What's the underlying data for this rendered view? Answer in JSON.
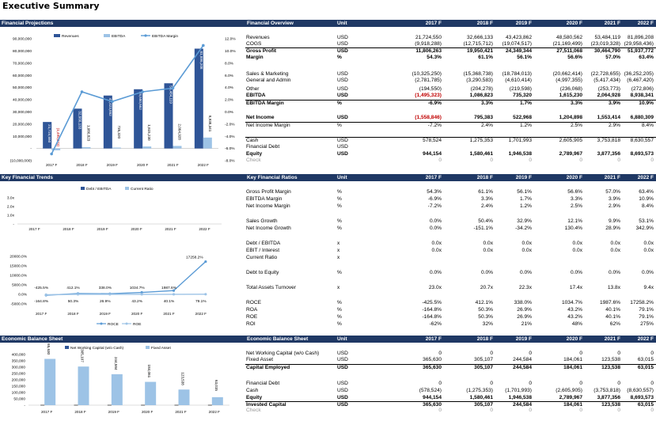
{
  "title": "Executive Summary",
  "colors": {
    "header_bg": "#1f3864",
    "bar_dark": "#2f5597",
    "bar_light": "#9dc3e6",
    "line": "#5b9bd5",
    "negative": "#c00000"
  },
  "years": [
    "2017 F",
    "2018 F",
    "2019 F",
    "2020 F",
    "2021 F",
    "2022 F"
  ],
  "sections": {
    "fin_proj": "Financial Projections",
    "fin_overview": "Financial Overview",
    "key_trends": "Key Financial Trends",
    "key_ratios": "Key Financial Ratios",
    "eco_bs_chart": "Economic Balance Sheet",
    "eco_bs_table": "Economic Balance Sheet",
    "unit_header": "Unit"
  },
  "overview_rows": [
    {
      "label": "Revenues",
      "unit": "USD",
      "values": [
        "21,724,550",
        "32,666,133",
        "43,423,862",
        "48,580,562",
        "53,484,119",
        "81,896,208"
      ]
    },
    {
      "label": "COGS",
      "unit": "USD",
      "values": [
        "(9,918,288)",
        "(12,715,712)",
        "(19,074,517)",
        "(21,169,499)",
        "(23,019,328)",
        "(29,958,436)"
      ]
    },
    {
      "label": "Gross Profit",
      "unit": "USD",
      "values": [
        "11,806,263",
        "19,950,421",
        "24,349,344",
        "27,511,068",
        "30,464,790",
        "51,937,772"
      ]
    },
    {
      "label": "Margin",
      "unit": "%",
      "values": [
        "54.3%",
        "61.1%",
        "56.1%",
        "56.6%",
        "57.0%",
        "63.4%"
      ]
    },
    {
      "label": "Sales & Marketing",
      "unit": "USD",
      "values": [
        "(10,325,250)",
        "(15,368,738)",
        "(18,784,013)",
        "(20,662,414)",
        "(22,728,655)",
        "(36,252,205)"
      ]
    },
    {
      "label": "General and Admin",
      "unit": "USD",
      "values": [
        "(2,781,785)",
        "(3,290,583)",
        "(4,610,414)",
        "(4,997,355)",
        "(5,417,434)",
        "(6,467,420)"
      ]
    },
    {
      "label": "Other",
      "unit": "USD",
      "values": [
        "(194,550)",
        "(204,278)",
        "(219,598)",
        "(236,068)",
        "(253,773)",
        "(272,806)"
      ]
    },
    {
      "label": "EBITDA",
      "unit": "USD",
      "values": [
        "(1,495,323)",
        "1,086,823",
        "735,320",
        "1,615,230",
        "2,064,928",
        "8,938,341"
      ]
    },
    {
      "label": "EBITDA Margin",
      "unit": "%",
      "values": [
        "-6.9%",
        "3.3%",
        "1.7%",
        "3.3%",
        "3.9%",
        "10.9%"
      ]
    },
    {
      "label": "Net Income",
      "unit": "USD",
      "values": [
        "(1,558,846)",
        "795,383",
        "522,968",
        "1,204,898",
        "1,553,414",
        "6,880,309"
      ]
    },
    {
      "label": "Net Income Margin",
      "unit": "%",
      "values": [
        "-7.2%",
        "2.4%",
        "1.2%",
        "2.5%",
        "2.9%",
        "8.4%"
      ]
    },
    {
      "label": "Cash",
      "unit": "USD",
      "values": [
        "578,524",
        "1,275,353",
        "1,701,993",
        "2,605,905",
        "3,753,818",
        "8,630,557"
      ]
    },
    {
      "label": "Financial Debt",
      "unit": "USD",
      "values": [
        "",
        "",
        "",
        "",
        "",
        ""
      ]
    },
    {
      "label": "Equity",
      "unit": "USD",
      "values": [
        "944,154",
        "1,580,461",
        "1,946,538",
        "2,789,967",
        "3,877,356",
        "8,693,573"
      ]
    },
    {
      "label": "Check",
      "unit": "",
      "values": [
        "0",
        "0",
        "0",
        "0",
        "0",
        "0"
      ]
    }
  ],
  "ratio_rows": [
    {
      "label": "Gross Profit Margin",
      "unit": "%",
      "values": [
        "54.3%",
        "61.1%",
        "56.1%",
        "56.6%",
        "57.0%",
        "63.4%"
      ]
    },
    {
      "label": "EBITDA Margin",
      "unit": "%",
      "values": [
        "-6.9%",
        "3.3%",
        "1.7%",
        "3.3%",
        "3.9%",
        "10.9%"
      ]
    },
    {
      "label": "Net Income Margin",
      "unit": "%",
      "values": [
        "-7.2%",
        "2.4%",
        "1.2%",
        "2.5%",
        "2.9%",
        "8.4%"
      ]
    },
    {
      "label": "Sales Growth",
      "unit": "%",
      "values": [
        "0.0%",
        "50.4%",
        "32.9%",
        "12.1%",
        "9.9%",
        "53.1%"
      ]
    },
    {
      "label": "Net Income Growth",
      "unit": "%",
      "values": [
        "0.0%",
        "-151.1%",
        "-34.2%",
        "130.4%",
        "28.9%",
        "342.9%"
      ]
    },
    {
      "label": "Debt / EBITDA",
      "unit": "x",
      "values": [
        "0.0x",
        "0.0x",
        "0.0x",
        "0.0x",
        "0.0x",
        "0.0x"
      ]
    },
    {
      "label": "EBIT / Interest",
      "unit": "x",
      "values": [
        "0.0x",
        "0.0x",
        "0.0x",
        "0.0x",
        "0.0x",
        "0.0x"
      ]
    },
    {
      "label": "Current Ratio",
      "unit": "x",
      "values": [
        "",
        "",
        "",
        "",
        "",
        ""
      ]
    },
    {
      "label": "Debt to Equity",
      "unit": "%",
      "values": [
        "0.0%",
        "0.0%",
        "0.0%",
        "0.0%",
        "0.0%",
        "0.0%"
      ]
    },
    {
      "label": "Total Assets Turnover",
      "unit": "x",
      "values": [
        "23.0x",
        "20.7x",
        "22.3x",
        "17.4x",
        "13.8x",
        "9.4x"
      ]
    },
    {
      "label": "ROCE",
      "unit": "%",
      "values": [
        "-425.5%",
        "412.1%",
        "338.0%",
        "1034.7%",
        "1987.6%",
        "17258.2%"
      ]
    },
    {
      "label": "ROA",
      "unit": "%",
      "values": [
        "-164.8%",
        "50.3%",
        "26.9%",
        "43.2%",
        "40.1%",
        "79.1%"
      ]
    },
    {
      "label": "ROE",
      "unit": "%",
      "values": [
        "-164.8%",
        "50.3%",
        "26.9%",
        "43.2%",
        "40.1%",
        "79.1%"
      ]
    },
    {
      "label": "ROI",
      "unit": "%",
      "values": [
        "-62%",
        "32%",
        "21%",
        "48%",
        "62%",
        "275%"
      ]
    }
  ],
  "ebs_rows": [
    {
      "label": "Net Working Capital (w/o Cash)",
      "unit": "USD",
      "values": [
        "0",
        "0",
        "0",
        "0",
        "0",
        "0"
      ]
    },
    {
      "label": "Fixed Asset",
      "unit": "USD",
      "values": [
        "365,630",
        "305,107",
        "244,584",
        "184,061",
        "123,538",
        "63,015"
      ]
    },
    {
      "label": "Capital Employed",
      "unit": "USD",
      "values": [
        "365,630",
        "305,107",
        "244,584",
        "184,061",
        "123,538",
        "63,015"
      ]
    },
    {
      "label": "Financial Debt",
      "unit": "USD",
      "values": [
        "0",
        "0",
        "0",
        "0",
        "0",
        "0"
      ]
    },
    {
      "label": "Cash",
      "unit": "USD",
      "values": [
        "(578,524)",
        "(1,275,353)",
        "(1,701,993)",
        "(2,605,905)",
        "(3,753,818)",
        "(8,630,557)"
      ]
    },
    {
      "label": "Equity",
      "unit": "USD",
      "values": [
        "944,154",
        "1,580,461",
        "1,946,538",
        "2,789,967",
        "3,877,356",
        "8,693,573"
      ]
    },
    {
      "label": "Invested Capital",
      "unit": "USD",
      "values": [
        "365,630",
        "305,107",
        "244,584",
        "184,061",
        "123,538",
        "63,015"
      ]
    },
    {
      "label": "Check",
      "unit": "",
      "values": [
        "0",
        "0",
        "0",
        "0",
        "0",
        "0"
      ]
    }
  ],
  "chart_data": [
    {
      "type": "bar",
      "categories": [
        "2017 F",
        "2018 F",
        "2019 F",
        "2020 F",
        "2021 F",
        "2022 F"
      ],
      "series": [
        {
          "name": "Revenues",
          "values": [
            21724550,
            32666133,
            43423862,
            48580562,
            53484119,
            81896208
          ],
          "labels": [
            "21,724,550",
            "32,666,133",
            "43,423,862",
            "48,580,562",
            "53,484,119",
            "81,896,208"
          ]
        },
        {
          "name": "EBITDA",
          "values": [
            -1495323,
            1086823,
            735320,
            1615230,
            2064928,
            8938341
          ],
          "labels": [
            "(1,495,323)",
            "1,086,823",
            "735,320",
            "1,615,230",
            "2,064,928",
            "8,938,341"
          ]
        },
        {
          "name": "EBITDA Margin",
          "values": [
            -6.9,
            3.3,
            1.7,
            3.3,
            3.9,
            10.9
          ]
        }
      ],
      "ylim": [
        -10000000,
        90000000
      ],
      "y_ticks": [
        "(10,000,000)",
        "-",
        "10,000,000",
        "20,000,000",
        "30,000,000",
        "40,000,000",
        "50,000,000",
        "60,000,000",
        "70,000,000",
        "80,000,000",
        "90,000,000"
      ],
      "y2lim": [
        -8,
        12
      ],
      "y2_ticks": [
        "-8.0%",
        "-6.0%",
        "-4.0%",
        "-2.0%",
        "0.0%",
        "2.0%",
        "4.0%",
        "6.0%",
        "8.0%",
        "10.0%",
        "12.0%"
      ],
      "legend": "top"
    },
    {
      "type": "bar",
      "categories": [
        "2017 F",
        "2018 F",
        "2019 F",
        "2020 F",
        "2021 F",
        "2022 F"
      ],
      "series": [
        {
          "name": "Debt / EBITDA",
          "values": [
            0,
            0,
            0,
            0,
            0,
            0
          ]
        },
        {
          "name": "Current Ratio",
          "values": [
            0,
            0,
            0,
            0,
            0,
            0
          ]
        }
      ],
      "y_ticks": [
        "-",
        "1.0x",
        "2.0x",
        "3.0x"
      ],
      "legend": "top"
    },
    {
      "type": "line",
      "categories": [
        "2017 F",
        "2018 F",
        "2019 F",
        "2020 F",
        "2021 F",
        "2022 F"
      ],
      "series": [
        {
          "name": "ROCE",
          "values": [
            -425.5,
            412.1,
            338.0,
            1034.7,
            1987.6,
            17258.2
          ],
          "labels": [
            "-425.5%",
            "412.1%",
            "338.0%",
            "1034.7%",
            "1987.6%",
            "17258.2%"
          ]
        },
        {
          "name": "ROE",
          "values": [
            -164.8,
            50.3,
            26.9,
            43.2,
            40.1,
            79.1
          ],
          "labels": [
            "-164.8%",
            "50.3%",
            "26.9%",
            "43.2%",
            "40.1%",
            "79.1%"
          ]
        }
      ],
      "ylim": [
        -5000,
        20000
      ],
      "y_ticks": [
        "-5000.0%",
        "0.0%",
        "5000.0%",
        "10000.0%",
        "15000.0%",
        "20000.0%"
      ],
      "legend": "bottom"
    },
    {
      "type": "bar",
      "categories": [
        "2017 F",
        "2018 F",
        "2019 F",
        "2020 F",
        "2021 F",
        "2022 F"
      ],
      "series": [
        {
          "name": "Net Working Capital (w/o Cash)",
          "values": [
            0,
            0,
            0,
            0,
            0,
            0
          ]
        },
        {
          "name": "Fixed Asset",
          "values": [
            365630,
            305107,
            244584,
            184061,
            123538,
            63015
          ],
          "labels": [
            "365,630",
            "305,107",
            "244,584",
            "184,061",
            "123,538",
            "63,015"
          ]
        }
      ],
      "ylim": [
        0,
        400000
      ],
      "y_ticks": [
        "-",
        "50,000",
        "100,000",
        "150,000",
        "200,000",
        "250,000",
        "300,000",
        "350,000",
        "400,000"
      ],
      "legend": "top"
    }
  ]
}
